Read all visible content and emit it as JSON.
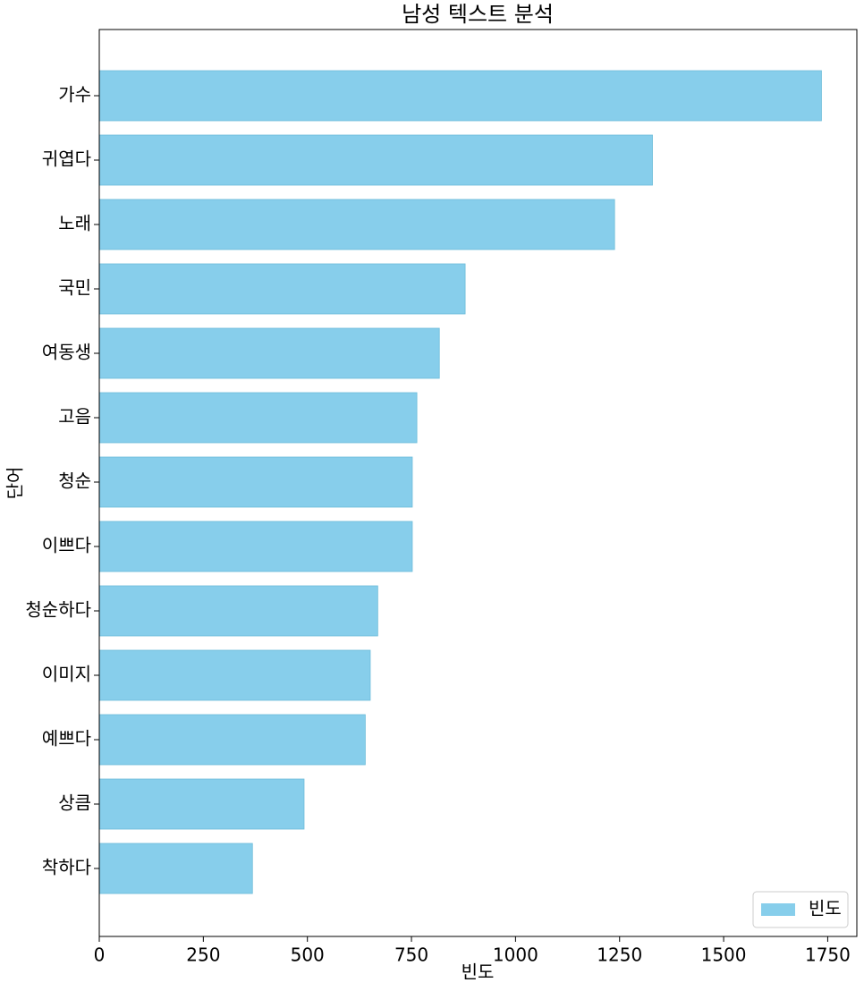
{
  "chart_data": {
    "type": "barh",
    "title": "남성 텍스트 분석",
    "x_label": "빈도",
    "y_label": "단어",
    "categories": [
      "가수",
      "귀엽다",
      "노래",
      "국민",
      "여동생",
      "고음",
      "청순",
      "이쁘다",
      "청순하다",
      "이미지",
      "예쁘다",
      "상큼",
      "착하다"
    ],
    "series": [
      {
        "name": "빈도",
        "color": "#87ceeb",
        "values": [
          1735,
          1329,
          1238,
          879,
          817,
          763,
          752,
          752,
          669,
          651,
          639,
          492,
          368
        ]
      }
    ],
    "xlim": [
      0,
      1820
    ],
    "xticks": [
      0,
      250,
      500,
      750,
      1000,
      1250,
      1500,
      1750
    ],
    "legend": "lower right",
    "grid": false
  }
}
